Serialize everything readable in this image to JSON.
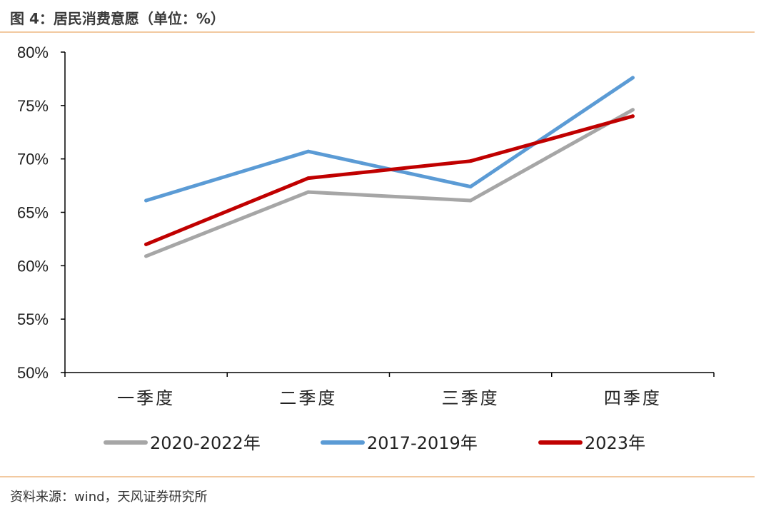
{
  "figure": {
    "title": "图 4：居民消费意愿（单位：%）",
    "source": "资料来源：wind，天风证券研究所"
  },
  "chart_data": {
    "type": "line",
    "categories": [
      "一季度",
      "二季度",
      "三季度",
      "四季度"
    ],
    "y_ticks": [
      "50%",
      "55%",
      "60%",
      "65%",
      "70%",
      "75%",
      "80%"
    ],
    "ylim": [
      50,
      80
    ],
    "y_unit": "%",
    "series": [
      {
        "name": "2020-2022年",
        "color": "#a6a6a6",
        "values": [
          60.9,
          66.9,
          66.1,
          74.6
        ]
      },
      {
        "name": "2017-2019年",
        "color": "#5b9bd5",
        "values": [
          66.1,
          70.7,
          67.4,
          77.6
        ]
      },
      {
        "name": "2023年",
        "color": "#c00000",
        "values": [
          62.0,
          68.2,
          69.8,
          74.0
        ]
      }
    ],
    "legend_position": "bottom",
    "grid": false
  }
}
